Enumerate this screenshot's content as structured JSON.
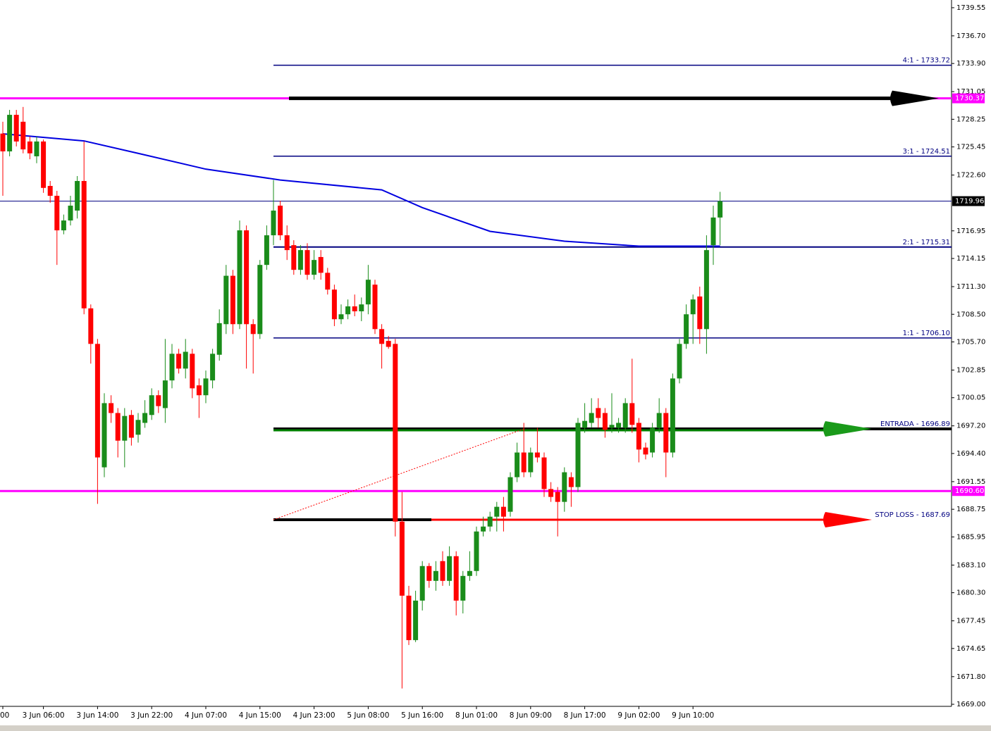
{
  "chart_data": {
    "type": "candlestick",
    "categories": [
      "00",
      null,
      null,
      null,
      null,
      null,
      "3 Jun 06:00",
      null,
      null,
      null,
      null,
      null,
      null,
      null,
      "3 Jun 14:00",
      null,
      null,
      null,
      null,
      null,
      null,
      null,
      "3 Jun 22:00",
      null,
      null,
      null,
      null,
      null,
      null,
      null,
      "4 Jun 07:00",
      null,
      null,
      null,
      null,
      null,
      null,
      null,
      "4 Jun 15:00",
      null,
      null,
      null,
      null,
      null,
      null,
      null,
      "4 Jun 23:00",
      null,
      null,
      null,
      null,
      null,
      null,
      null,
      "5 Jun 08:00",
      null,
      null,
      null,
      null,
      null,
      null,
      null,
      "5 Jun 16:00",
      null,
      null,
      null,
      null,
      null,
      null,
      null,
      "8 Jun 01:00",
      null,
      null,
      null,
      null,
      null,
      null,
      null,
      "8 Jun 09:00",
      null,
      null,
      null,
      null,
      null,
      null,
      null,
      "8 Jun 17:00",
      null,
      null,
      null,
      null,
      null,
      null,
      null,
      "9 Jun 02:00",
      null,
      null,
      null,
      null,
      null,
      null,
      null,
      "9 Jun 10:00",
      null,
      null,
      null,
      null
    ],
    "ohlc": [
      [
        1726.8,
        1728.0,
        1720.5,
        1725.0
      ],
      [
        1725.0,
        1729.2,
        1724.5,
        1728.7
      ],
      [
        1728.7,
        1729.2,
        1725.5,
        1726.0
      ],
      [
        1728.0,
        1729.5,
        1724.8,
        1725.2
      ],
      [
        1726.0,
        1726.5,
        1724.2,
        1724.8
      ],
      [
        1724.5,
        1726.5,
        1723.8,
        1726.0
      ],
      [
        1726.0,
        1726.2,
        1720.8,
        1721.3
      ],
      [
        1721.5,
        1722.0,
        1719.8,
        1720.5
      ],
      [
        1720.5,
        1721.0,
        1713.5,
        1717.0
      ],
      [
        1717.0,
        1718.6,
        1716.6,
        1718.0
      ],
      [
        1718.0,
        1720.5,
        1717.5,
        1719.5
      ],
      [
        1719.0,
        1722.5,
        1718.2,
        1722.0
      ],
      [
        1722.0,
        1726.0,
        1708.5,
        1709.1
      ],
      [
        1709.1,
        1709.5,
        1703.5,
        1705.5
      ],
      [
        1705.5,
        1706.0,
        1689.3,
        1694.0
      ],
      [
        1693.0,
        1700.5,
        1692.0,
        1699.5
      ],
      [
        1699.5,
        1700.3,
        1697.5,
        1698.5
      ],
      [
        1698.5,
        1699.0,
        1694.0,
        1695.7
      ],
      [
        1695.7,
        1699.0,
        1693.0,
        1698.2
      ],
      [
        1698.3,
        1698.8,
        1695.2,
        1696.0
      ],
      [
        1696.3,
        1698.5,
        1695.5,
        1697.8
      ],
      [
        1697.5,
        1699.8,
        1697.0,
        1698.5
      ],
      [
        1698.3,
        1701.0,
        1697.8,
        1700.3
      ],
      [
        1700.3,
        1700.8,
        1698.5,
        1699.2
      ],
      [
        1699.0,
        1706.0,
        1697.5,
        1701.8
      ],
      [
        1701.8,
        1705.5,
        1701.0,
        1704.5
      ],
      [
        1704.5,
        1705.0,
        1702.5,
        1703.0
      ],
      [
        1703.0,
        1706.0,
        1702.0,
        1704.7
      ],
      [
        1704.5,
        1705.0,
        1700.0,
        1701.0
      ],
      [
        1701.3,
        1702.0,
        1698.0,
        1700.3
      ],
      [
        1700.3,
        1702.8,
        1699.5,
        1702.0
      ],
      [
        1701.8,
        1705.0,
        1701.0,
        1704.5
      ],
      [
        1704.4,
        1709.0,
        1703.8,
        1707.6
      ],
      [
        1707.5,
        1713.5,
        1706.5,
        1712.4
      ],
      [
        1712.4,
        1713.0,
        1706.5,
        1707.5
      ],
      [
        1707.5,
        1718.0,
        1707.0,
        1717.0
      ],
      [
        1717.0,
        1717.5,
        1703.0,
        1707.5
      ],
      [
        1707.5,
        1708.0,
        1702.5,
        1706.5
      ],
      [
        1706.5,
        1714.0,
        1706.0,
        1713.5
      ],
      [
        1713.5,
        1717.5,
        1713.0,
        1716.5
      ],
      [
        1716.5,
        1722.1,
        1715.5,
        1719.0
      ],
      [
        1719.5,
        1720.0,
        1716.0,
        1716.5
      ],
      [
        1716.5,
        1717.5,
        1714.0,
        1715.0
      ],
      [
        1715.5,
        1716.0,
        1712.5,
        1713.0
      ],
      [
        1713.0,
        1715.5,
        1712.5,
        1715.0
      ],
      [
        1715.0,
        1715.7,
        1712.0,
        1712.5
      ],
      [
        1712.5,
        1715.0,
        1712.0,
        1714.0
      ],
      [
        1714.3,
        1715.0,
        1712.0,
        1712.7
      ],
      [
        1712.7,
        1713.2,
        1710.5,
        1711.0
      ],
      [
        1711.0,
        1711.5,
        1707.3,
        1708.0
      ],
      [
        1708.0,
        1709.5,
        1707.5,
        1708.5
      ],
      [
        1708.5,
        1710.0,
        1708.0,
        1709.3
      ],
      [
        1709.3,
        1710.5,
        1708.3,
        1708.8
      ],
      [
        1708.8,
        1710.2,
        1707.8,
        1709.5
      ],
      [
        1709.5,
        1713.5,
        1708.5,
        1712.0
      ],
      [
        1711.5,
        1712.0,
        1706.5,
        1707.0
      ],
      [
        1707.0,
        1707.5,
        1703.0,
        1705.5
      ],
      [
        1705.8,
        1706.3,
        1705.0,
        1705.2
      ],
      [
        1705.5,
        1706.0,
        1686.0,
        1687.5
      ],
      [
        1687.5,
        1690.5,
        1670.6,
        1680.0
      ],
      [
        1680.0,
        1681.0,
        1675.0,
        1675.5
      ],
      [
        1675.5,
        1680.5,
        1675.3,
        1679.5
      ],
      [
        1679.5,
        1683.5,
        1678.5,
        1683.0
      ],
      [
        1683.0,
        1683.3,
        1680.8,
        1681.5
      ],
      [
        1681.5,
        1683.5,
        1680.5,
        1682.5
      ],
      [
        1683.5,
        1684.5,
        1681.0,
        1681.5
      ],
      [
        1681.5,
        1685.0,
        1681.0,
        1684.0
      ],
      [
        1684.0,
        1684.5,
        1678.0,
        1679.5
      ],
      [
        1679.5,
        1682.5,
        1678.2,
        1682.0
      ],
      [
        1682.0,
        1684.5,
        1681.5,
        1682.5
      ],
      [
        1682.5,
        1687.0,
        1682.0,
        1686.5
      ],
      [
        1686.5,
        1688.0,
        1686.0,
        1687.0
      ],
      [
        1687.0,
        1688.5,
        1686.5,
        1688.0
      ],
      [
        1688.0,
        1689.5,
        1686.5,
        1689.0
      ],
      [
        1689.0,
        1690.0,
        1686.5,
        1688.0
      ],
      [
        1688.5,
        1692.5,
        1688.0,
        1692.0
      ],
      [
        1692.0,
        1695.5,
        1691.5,
        1694.5
      ],
      [
        1694.5,
        1697.5,
        1692.0,
        1692.5
      ],
      [
        1692.5,
        1695.0,
        1692.0,
        1694.5
      ],
      [
        1694.5,
        1697.0,
        1693.5,
        1694.0
      ],
      [
        1694.0,
        1694.5,
        1690.0,
        1690.8
      ],
      [
        1690.8,
        1691.5,
        1689.5,
        1690.0
      ],
      [
        1690.5,
        1691.0,
        1686.0,
        1689.5
      ],
      [
        1689.5,
        1693.0,
        1688.5,
        1692.5
      ],
      [
        1692.0,
        1692.5,
        1689.0,
        1691.0
      ],
      [
        1691.0,
        1698.0,
        1690.5,
        1697.5
      ],
      [
        1697.0,
        1699.5,
        1696.5,
        1697.7
      ],
      [
        1697.5,
        1700.0,
        1697.0,
        1698.5
      ],
      [
        1699.0,
        1700.0,
        1697.0,
        1698.0
      ],
      [
        1698.5,
        1699.0,
        1696.0,
        1696.8
      ],
      [
        1697.0,
        1700.5,
        1696.5,
        1697.3
      ],
      [
        1697.0,
        1698.0,
        1696.5,
        1697.5
      ],
      [
        1697.0,
        1700.0,
        1696.5,
        1699.5
      ],
      [
        1699.5,
        1704.0,
        1696.5,
        1697.3
      ],
      [
        1697.5,
        1698.0,
        1693.5,
        1694.8
      ],
      [
        1695.0,
        1695.5,
        1693.8,
        1694.3
      ],
      [
        1694.5,
        1697.5,
        1694.0,
        1697.0
      ],
      [
        1697.0,
        1700.0,
        1696.5,
        1698.5
      ],
      [
        1698.5,
        1699.0,
        1692.0,
        1694.5
      ],
      [
        1694.5,
        1702.5,
        1694.0,
        1702.0
      ],
      [
        1702.0,
        1706.0,
        1701.5,
        1705.5
      ],
      [
        1705.5,
        1709.5,
        1705.0,
        1708.5
      ],
      [
        1708.5,
        1710.5,
        1705.5,
        1710.0
      ],
      [
        1710.3,
        1711.3,
        1705.5,
        1707.0
      ],
      [
        1707.0,
        1716.5,
        1704.5,
        1715.0
      ],
      [
        1715.5,
        1719.5,
        1713.5,
        1718.3
      ],
      [
        1718.3,
        1720.9,
        1715.5,
        1719.96
      ]
    ],
    "up_color": "#1a8c1a",
    "down_color": "#ff0000",
    "ma": {
      "color": "#0000e0",
      "x": [
        0,
        12,
        20,
        30,
        41,
        56,
        62,
        72,
        83,
        94,
        106
      ],
      "values": [
        1726.78,
        1726.06,
        1724.8,
        1723.2,
        1722.1,
        1721.1,
        1719.3,
        1716.9,
        1715.9,
        1715.4,
        1715.4
      ]
    },
    "trendline": {
      "color": "#ff0000",
      "x": [
        40,
        77
      ],
      "values": [
        1687.69,
        1696.89
      ]
    },
    "levels": [
      {
        "label": "4:1 - 1733.72",
        "value": 1733.72,
        "color": "#000080",
        "from": 40
      },
      {
        "value": 1730.37,
        "color": "#ff00ff",
        "price_label": "1730.37",
        "arrow_color": "#000000"
      },
      {
        "label": "3:1 - 1724.51",
        "value": 1724.51,
        "color": "#000080",
        "from": 40
      },
      {
        "value": 1719.96,
        "color": "#000080",
        "price_label": "1719.96"
      },
      {
        "label": "2:1 - 1715.31",
        "value": 1715.31,
        "color": "#000080",
        "from": 40
      },
      {
        "label": "1:1 - 1706.10",
        "value": 1706.1,
        "color": "#000080",
        "from": 40
      },
      {
        "label": "ENTRADA - 1696.89",
        "value": 1696.89,
        "color": "#008000",
        "from": 40,
        "arrow_color": "#1a9a1a"
      },
      {
        "value": 1690.6,
        "color": "#ff00ff",
        "price_label": "1690.60"
      },
      {
        "label": "STOP LOSS - 1687.69",
        "value": 1687.69,
        "color": "#ff0000",
        "from": 40,
        "arrow_color": "#ff0000"
      }
    ],
    "ylim": [
      1668.79,
      1740.33
    ],
    "yticks": [
      1739.55,
      {
        "value": 1736.7,
        "label": "1736.70"
      },
      {
        "value": 1733.9,
        "label": "1733.90"
      },
      1731.05,
      1728.25,
      1725.45,
      {
        "value": 1722.6,
        "label": "1722.60"
      },
      1716.95,
      1714.15,
      {
        "value": 1711.3,
        "label": "1711.30"
      },
      {
        "value": 1708.5,
        "label": "1708.50"
      },
      {
        "value": 1705.7,
        "label": "1705.70"
      },
      1702.85,
      1700.05,
      {
        "value": 1697.2,
        "label": "1697.20"
      },
      {
        "value": 1694.4,
        "label": "1694.40"
      },
      1691.55,
      1688.75,
      1685.95,
      {
        "value": 1683.1,
        "label": "1683.10"
      },
      {
        "value": 1680.3,
        "label": "1680.30"
      },
      1677.45,
      1674.65,
      {
        "value": 1671.8,
        "label": "1671.80"
      },
      {
        "value": 1669,
        "label": "1669.00"
      }
    ]
  }
}
